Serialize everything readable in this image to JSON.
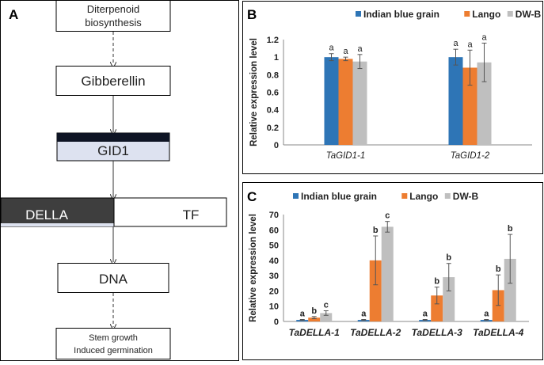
{
  "panels": {
    "a": "A",
    "b": "B",
    "c": "C"
  },
  "pathway": {
    "step1": [
      "Diterpenoid",
      "biosynthesis"
    ],
    "step2": "Gibberellin",
    "step3": "GID1",
    "step4a": "DELLA",
    "step4b": "TF",
    "step5": "DNA",
    "step6": [
      "Stem growth",
      "Induced germination"
    ]
  },
  "colors": {
    "indian_blue_grain": "#2E75B6",
    "lango": "#ED7D31",
    "dw_b": "#BFBFBF"
  },
  "chart_data": [
    {
      "type": "bar",
      "panel": "B",
      "ylabel": "Relative expression level",
      "ylim": [
        0,
        1.2
      ],
      "yticks": [
        "0",
        "0.2",
        "0.4",
        "0.6",
        "0.8",
        "1",
        "1.2"
      ],
      "yticks_values": [
        0,
        0.2,
        0.4,
        0.6,
        0.8,
        1.0,
        1.2
      ],
      "categories": [
        "TaGID1-1",
        "TaGID1-2"
      ],
      "legend_position": "top",
      "series": [
        {
          "name": "Indian blue grain",
          "values": [
            1.0,
            1.0
          ],
          "errors": [
            0.04,
            0.09
          ],
          "letters": [
            "a",
            "a"
          ]
        },
        {
          "name": "Lango",
          "values": [
            0.98,
            0.88
          ],
          "errors": [
            0.02,
            0.2
          ],
          "letters": [
            "a",
            "a"
          ]
        },
        {
          "name": "DW-B",
          "values": [
            0.95,
            0.94
          ],
          "errors": [
            0.08,
            0.22
          ],
          "letters": [
            "a",
            "a"
          ]
        }
      ]
    },
    {
      "type": "bar",
      "panel": "C",
      "ylabel": "Relative expression level",
      "ylim": [
        0,
        70
      ],
      "yticks": [
        "0",
        "10",
        "20",
        "30",
        "40",
        "50",
        "60",
        "70"
      ],
      "yticks_values": [
        0,
        10,
        20,
        30,
        40,
        50,
        60,
        70
      ],
      "categories": [
        "TaDELLA-1",
        "TaDELLA-2",
        "TaDELLA-3",
        "TaDELLA-4"
      ],
      "legend_position": "top",
      "series": [
        {
          "name": "Indian blue grain",
          "values": [
            1,
            1,
            1,
            1
          ],
          "errors": [
            0.3,
            0.3,
            0.3,
            0.3
          ],
          "letters": [
            "a",
            "a",
            "a",
            "a"
          ]
        },
        {
          "name": "Lango",
          "values": [
            2.5,
            40,
            17,
            20.5
          ],
          "errors": [
            0.7,
            16,
            5.5,
            10
          ],
          "letters": [
            "b",
            "b",
            "b",
            "b"
          ]
        },
        {
          "name": "DW-B",
          "values": [
            5.5,
            62,
            29,
            41
          ],
          "errors": [
            1.5,
            3.5,
            9,
            16
          ],
          "letters": [
            "c",
            "c",
            "b",
            "b"
          ]
        }
      ]
    }
  ]
}
